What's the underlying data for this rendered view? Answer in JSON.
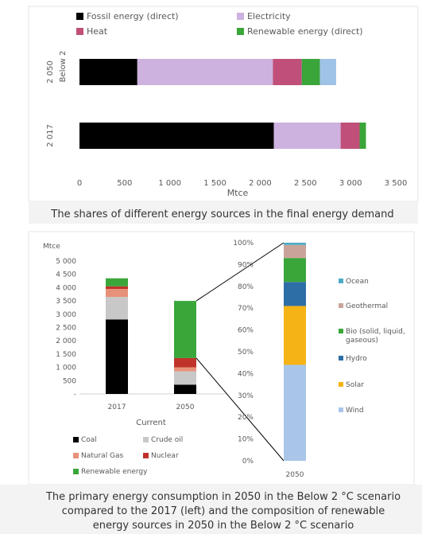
{
  "top_chart": {
    "caption": "The shares of different energy sources in the final energy demand",
    "chart_data": {
      "type": "bar",
      "orientation": "horizontal",
      "stacked": true,
      "categories": [
        "Below 2 2050",
        "2017"
      ],
      "category_labels": [
        {
          "group": "Below 2",
          "year": "2 050"
        },
        {
          "group": "",
          "year": "2 017"
        }
      ],
      "series": [
        {
          "name": "Fossil energy (direct)",
          "color": "#000000",
          "values": [
            640,
            2150
          ]
        },
        {
          "name": "Electricity",
          "color": "#cdb1de",
          "values": [
            1500,
            740
          ]
        },
        {
          "name": "Heat",
          "color": "#c0507a",
          "values": [
            320,
            210
          ]
        },
        {
          "name": "Renewable energy (direct)",
          "color": "#3aa63a",
          "values": [
            200,
            70
          ]
        },
        {
          "name": "",
          "color": "#9fc3e6",
          "values": [
            180,
            0
          ]
        }
      ],
      "xlim": [
        0,
        3500
      ],
      "xticks": [
        0,
        500,
        1000,
        1500,
        2000,
        2500,
        3000,
        3500
      ],
      "xtick_labels": [
        "0",
        "500",
        "1 000",
        "1 500",
        "2 000",
        "2 500",
        "3 000",
        "3 500"
      ],
      "xlabel": "Mtce",
      "legend_position": "top"
    }
  },
  "bottom_left_chart": {
    "chart_data": {
      "type": "bar",
      "stacked": true,
      "categories": [
        "2017",
        "2050"
      ],
      "series": [
        {
          "name": "Coal",
          "color": "#000000",
          "values": [
            2800,
            350
          ]
        },
        {
          "name": "Crude oil",
          "color": "#c8c8c8",
          "values": [
            850,
            500
          ]
        },
        {
          "name": "Natural Gas",
          "color": "#e8917a",
          "values": [
            300,
            150
          ]
        },
        {
          "name": "Nuclear",
          "color": "#c0332a",
          "values": [
            100,
            350
          ]
        },
        {
          "name": "Renewable energy",
          "color": "#3aa63a",
          "values": [
            300,
            2150
          ]
        }
      ],
      "ylim": [
        0,
        5000
      ],
      "yticks": [
        0,
        500,
        1000,
        1500,
        2000,
        2500,
        3000,
        3500,
        4000,
        4500,
        5000
      ],
      "ytick_labels": [
        "-",
        "500",
        "1 000",
        "1 500",
        "2 000",
        "2 500",
        "3 000",
        "3 500",
        "4 000",
        "4 500",
        "5 000"
      ],
      "ylabel": "Mtce",
      "xlabel": "Current",
      "legend_position": "bottom"
    }
  },
  "bottom_right_chart": {
    "chart_data": {
      "type": "bar",
      "stacked": true,
      "percent": true,
      "categories": [
        "2050"
      ],
      "series": [
        {
          "name": "Wind",
          "color": "#a9c5e8",
          "values": [
            44
          ]
        },
        {
          "name": "Solar",
          "color": "#f5b316",
          "values": [
            27
          ]
        },
        {
          "name": "Hydro",
          "color": "#2e6ea6",
          "values": [
            11
          ]
        },
        {
          "name": "Bio (solid, liquid, gaseous)",
          "color": "#3aa63a",
          "values": [
            11
          ]
        },
        {
          "name": "Geothermal",
          "color": "#c9a39a",
          "values": [
            6
          ]
        },
        {
          "name": "Ocean",
          "color": "#4bacc6",
          "values": [
            1
          ]
        }
      ],
      "ylim": [
        0,
        100
      ],
      "yticks": [
        0,
        10,
        20,
        30,
        40,
        50,
        60,
        70,
        80,
        90,
        100
      ],
      "ytick_labels": [
        "0%",
        "10%",
        "20%",
        "30%",
        "40%",
        "50%",
        "60%",
        "70%",
        "80%",
        "90%",
        "100%"
      ],
      "legend_position": "right"
    }
  },
  "bottom_caption": [
    "The primary energy consumption in 2050 in the Below 2 °C scenario",
    "compared to the 2017 (left) and the composition of renewable",
    "energy sources in 2050 in the Below 2 °C scenario"
  ]
}
